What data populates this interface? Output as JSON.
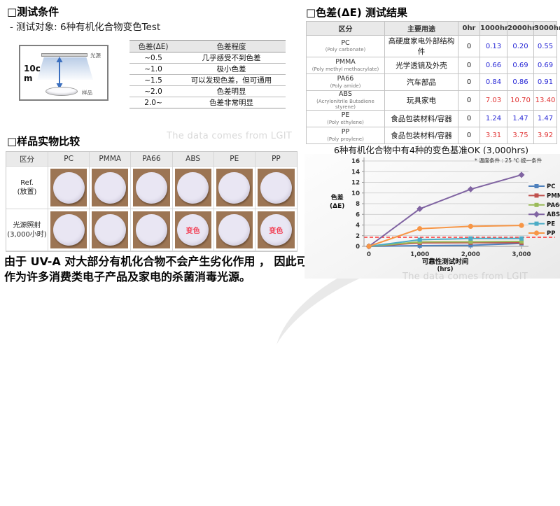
{
  "watermark": {
    "text": "The data comes from LGIT"
  },
  "test_conditions": {
    "title": "□测试条件",
    "subtitle": "- 测试对象: 6种有机化合物变色Test",
    "diagram": {
      "light_source_label": "光源",
      "sample_label": "样品",
      "distance_label": "10cm"
    },
    "scale_table": {
      "headers": [
        "色差(ΔE)",
        "色差程度"
      ],
      "rows": [
        {
          "range": "~0.5",
          "desc": "几乎感受不到色差"
        },
        {
          "range": "~1.0",
          "desc": "极小色差"
        },
        {
          "range": "~1.5",
          "desc": "可以发现色差，但可通用"
        },
        {
          "range": "~2.0",
          "desc": "色差明显"
        },
        {
          "range": "2.0~",
          "desc": "色差非常明显"
        }
      ]
    }
  },
  "sample_comparison": {
    "title": "□样品实物比较",
    "corner_header": "区分",
    "materials": [
      "PC",
      "PMMA",
      "PA66",
      "ABS",
      "PE",
      "PP"
    ],
    "rows": [
      {
        "label_line1": "Ref.",
        "label_line2": "(放置)",
        "discolored": []
      },
      {
        "label_line1": "光源照射",
        "label_line2": "(3,000小时)",
        "discolored": [
          "ABS",
          "PP"
        ]
      }
    ],
    "discolor_label": "变色"
  },
  "conclusion": "由于 UV-A 对大部分有机化合物不会产生劣化作用 ， 因此可作为许多消费类电子产品及家电的杀菌消毒光源。",
  "results": {
    "title": "□色差(ΔE) 测试结果",
    "headline": "6种有机化合物中有4种的变色基准OK (3,000hrs)",
    "table": {
      "headers": [
        "区分",
        "主要用途",
        "0hr",
        "1000hr",
        "2000hr",
        "3000hr"
      ],
      "pass_color": "#2929d6",
      "fail_color": "#e03131",
      "rows": [
        {
          "material": "PC",
          "material_full": "(Poly carbonate)",
          "application": "高硬度家电外部结构件",
          "base": "0",
          "values": [
            "0.13",
            "0.20",
            "0.55"
          ],
          "status": "pass"
        },
        {
          "material": "PMMA",
          "material_full": "(Poly methyl methacrylate)",
          "application": "光学透镜及外壳",
          "base": "0",
          "values": [
            "0.66",
            "0.69",
            "0.69"
          ],
          "status": "pass"
        },
        {
          "material": "PA66",
          "material_full": "(Poly amide)",
          "application": "汽车部品",
          "base": "0",
          "values": [
            "0.84",
            "0.86",
            "0.91"
          ],
          "status": "pass"
        },
        {
          "material": "ABS",
          "material_full": "(Acrylonitrile Butadiene styrene)",
          "application": "玩具家电",
          "base": "0",
          "values": [
            "7.03",
            "10.70",
            "13.40"
          ],
          "status": "fail"
        },
        {
          "material": "PE",
          "material_full": "(Poly ethylene)",
          "application": "食品包装材料/容器",
          "base": "0",
          "values": [
            "1.24",
            "1.47",
            "1.47"
          ],
          "status": "pass"
        },
        {
          "material": "PP",
          "material_full": "(Poly proylene)",
          "application": "食品包装材料/容器",
          "base": "0",
          "values": [
            "3.31",
            "3.75",
            "3.92"
          ],
          "status": "fail"
        }
      ]
    }
  },
  "chart_data": {
    "type": "line",
    "x": [
      0,
      1000,
      2000,
      3000
    ],
    "x_tick_labels": [
      "0",
      "1,000",
      "2,000",
      "3,000"
    ],
    "series": [
      {
        "name": "PC",
        "color": "#4F81BD",
        "marker": "square",
        "values": [
          0,
          0.13,
          0.2,
          0.55
        ]
      },
      {
        "name": "PMMA",
        "color": "#C0504D",
        "marker": "square",
        "values": [
          0,
          0.66,
          0.69,
          0.69
        ]
      },
      {
        "name": "PA66",
        "color": "#9BBB59",
        "marker": "square",
        "values": [
          0,
          0.84,
          0.86,
          0.91
        ]
      },
      {
        "name": "ABS",
        "color": "#8064A2",
        "marker": "diamond",
        "values": [
          0,
          7.03,
          10.7,
          13.4
        ]
      },
      {
        "name": "PE",
        "color": "#4BACC6",
        "marker": "square",
        "values": [
          0,
          1.24,
          1.47,
          1.47
        ]
      },
      {
        "name": "PP",
        "color": "#F79646",
        "marker": "circle",
        "values": [
          0,
          3.31,
          3.75,
          3.92
        ]
      }
    ],
    "ylabel_lines": [
      "色差",
      "(ΔE)"
    ],
    "xlabel_lines": [
      "可靠性测试时间",
      "(hrs)"
    ],
    "ylim": [
      0,
      16
    ],
    "ytick_step": 2,
    "threshold_line": {
      "value": 1.7,
      "color": "#ff2a2a"
    },
    "annotation": "* 温度条件 : 25 ℃ 统一条件",
    "legend_position": "right",
    "grid": true
  }
}
